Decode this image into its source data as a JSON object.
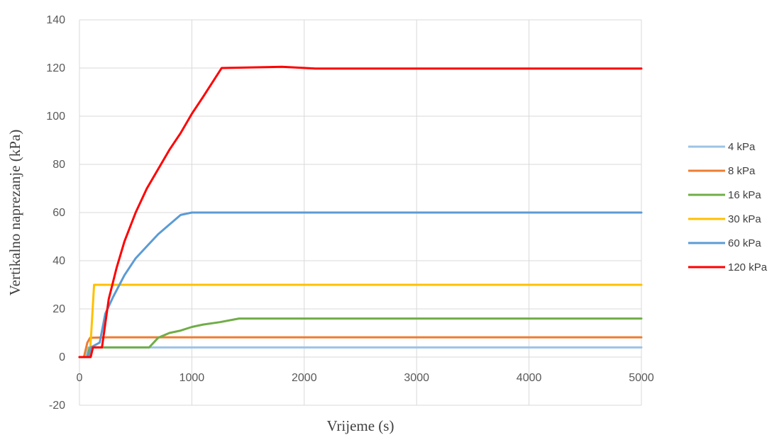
{
  "chart_data": {
    "type": "line",
    "title": "",
    "xlabel": "Vrijeme (s)",
    "ylabel": "Vertikalno naprezanje (kPa)",
    "xlim": [
      0,
      5000
    ],
    "ylim": [
      -20,
      140
    ],
    "x_ticks": [
      "0",
      "1000",
      "2000",
      "3000",
      "4000",
      "5000"
    ],
    "y_ticks": [
      "-20",
      "0",
      "20",
      "40",
      "60",
      "80",
      "100",
      "120",
      "140"
    ],
    "grid": true,
    "legend_position": "right",
    "series": [
      {
        "name": "4 kPa",
        "color": "#9dc3e6",
        "points": [
          [
            0,
            0
          ],
          [
            60,
            0
          ],
          [
            80,
            4
          ],
          [
            5000,
            4
          ]
        ]
      },
      {
        "name": "8 kPa",
        "color": "#ed7d31",
        "points": [
          [
            0,
            0
          ],
          [
            40,
            0
          ],
          [
            70,
            6
          ],
          [
            95,
            8
          ],
          [
            250,
            8.2
          ],
          [
            5000,
            8.2
          ]
        ]
      },
      {
        "name": "16 kPa",
        "color": "#70ad47",
        "points": [
          [
            0,
            0
          ],
          [
            70,
            0
          ],
          [
            90,
            4
          ],
          [
            620,
            4
          ],
          [
            700,
            8
          ],
          [
            800,
            10
          ],
          [
            900,
            11
          ],
          [
            1000,
            12.5
          ],
          [
            1100,
            13.5
          ],
          [
            1250,
            14.5
          ],
          [
            1420,
            16
          ],
          [
            5000,
            16
          ]
        ]
      },
      {
        "name": "30 kPa",
        "color": "#ffc000",
        "points": [
          [
            0,
            0
          ],
          [
            90,
            0
          ],
          [
            105,
            10
          ],
          [
            115,
            18
          ],
          [
            130,
            30
          ],
          [
            5000,
            30
          ]
        ]
      },
      {
        "name": "60 kPa",
        "color": "#5b9bd5",
        "points": [
          [
            0,
            0
          ],
          [
            80,
            0
          ],
          [
            100,
            4
          ],
          [
            180,
            6
          ],
          [
            230,
            18
          ],
          [
            300,
            25
          ],
          [
            400,
            34
          ],
          [
            500,
            41
          ],
          [
            600,
            46
          ],
          [
            700,
            51
          ],
          [
            800,
            55
          ],
          [
            900,
            59
          ],
          [
            1000,
            60
          ],
          [
            5000,
            60
          ]
        ]
      },
      {
        "name": "120 kPa",
        "color": "#ff0000",
        "points": [
          [
            0,
            0
          ],
          [
            100,
            0
          ],
          [
            120,
            4
          ],
          [
            200,
            4
          ],
          [
            260,
            24
          ],
          [
            330,
            37
          ],
          [
            400,
            48
          ],
          [
            500,
            60
          ],
          [
            600,
            70
          ],
          [
            700,
            78
          ],
          [
            800,
            86
          ],
          [
            900,
            93
          ],
          [
            1000,
            101
          ],
          [
            1100,
            108
          ],
          [
            1265,
            120
          ],
          [
            1800,
            120.5
          ],
          [
            2100,
            119.8
          ],
          [
            5000,
            119.8
          ]
        ]
      }
    ]
  }
}
